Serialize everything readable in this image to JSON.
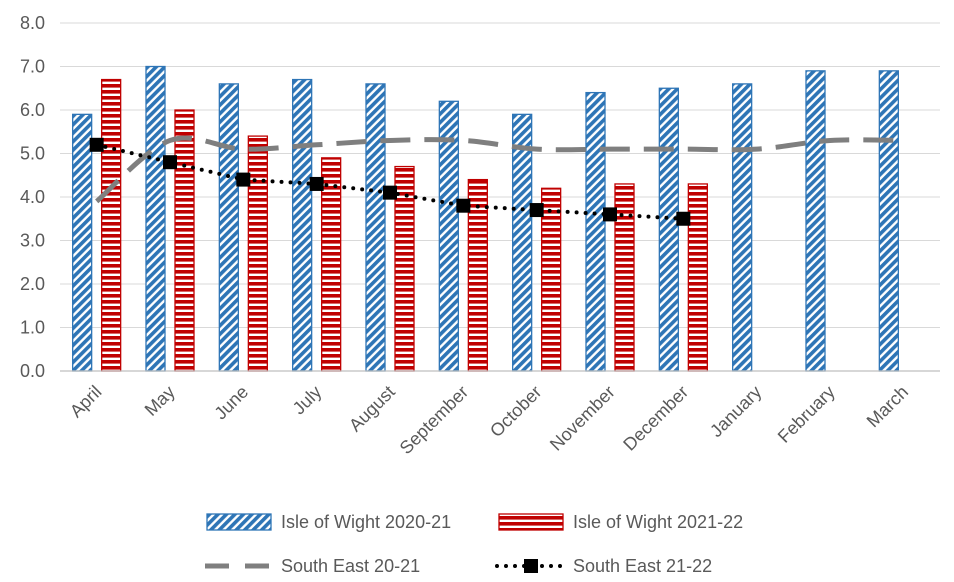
{
  "chart_data": {
    "type": "bar",
    "categories": [
      "April",
      "May",
      "June",
      "July",
      "August",
      "September",
      "October",
      "November",
      "December",
      "January",
      "February",
      "March"
    ],
    "ylim": [
      0,
      8
    ],
    "yticks": [
      "0.0",
      "1.0",
      "2.0",
      "3.0",
      "4.0",
      "5.0",
      "6.0",
      "7.0",
      "8.0"
    ],
    "grid": true,
    "legend_position": "bottom",
    "series": [
      {
        "name": "Isle of Wight 2020-21",
        "kind": "bar",
        "pattern": "diagonal-stripes",
        "color": "#2E75B6",
        "values": [
          5.9,
          7.0,
          6.6,
          6.7,
          6.6,
          6.2,
          5.9,
          6.4,
          6.5,
          6.6,
          6.9,
          6.9
        ]
      },
      {
        "name": "Isle of Wight 2021-22",
        "kind": "bar",
        "pattern": "horizontal-stripes",
        "color": "#C00000",
        "values": [
          6.7,
          6.0,
          5.4,
          4.9,
          4.7,
          4.4,
          4.2,
          4.3,
          4.3,
          null,
          null,
          null
        ]
      },
      {
        "name": "South East 20-21",
        "kind": "line",
        "dash": "long-dash",
        "color": "#7F7F7F",
        "values": [
          3.9,
          5.3,
          5.1,
          5.2,
          5.3,
          5.3,
          5.1,
          5.1,
          5.1,
          5.1,
          5.3,
          5.3
        ]
      },
      {
        "name": "South East 21-22",
        "kind": "line",
        "dash": "dotted",
        "marker": "square",
        "color": "#000000",
        "values": [
          5.2,
          4.8,
          4.4,
          4.3,
          4.1,
          3.8,
          3.7,
          3.6,
          3.5,
          null,
          null,
          null
        ]
      }
    ]
  }
}
